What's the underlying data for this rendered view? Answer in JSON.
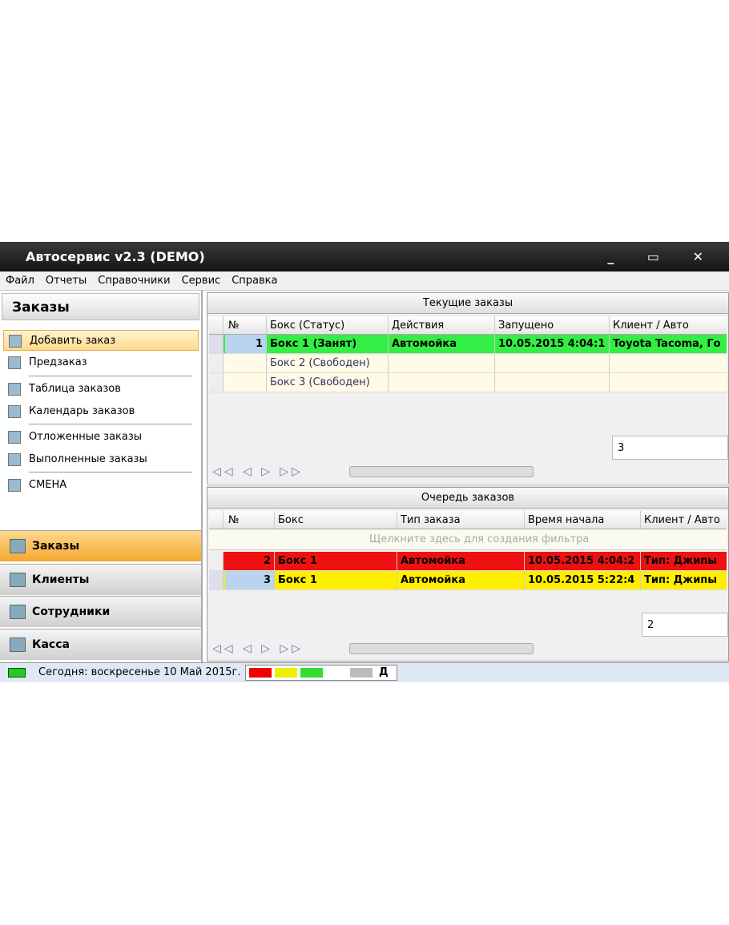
{
  "window": {
    "title": "Автосервис v2.3 (DEMO)"
  },
  "menu": [
    "Файл",
    "Отчеты",
    "Справочники",
    "Сервис",
    "Справка"
  ],
  "sidebar": {
    "title": "Заказы",
    "items": [
      "Добавить заказ",
      "Предзаказ",
      "Таблица заказов",
      "Календарь заказов",
      "Отложенные заказы",
      "Выполненные заказы",
      "СМЕНА"
    ],
    "nav": [
      "Заказы",
      "Клиенты",
      "Сотрудники",
      "Касса"
    ]
  },
  "current_orders": {
    "title": "Текущие заказы",
    "columns": [
      "№",
      "Бокс (Статус)",
      "Действия",
      "Запущено",
      "Клиент / Авто"
    ],
    "rows": [
      {
        "number": 1,
        "box": "Бокс 1 (Занят)",
        "action": "Автомойка",
        "time": "10.05.2015 4:04:1",
        "client": "Toyota Tacoma, Го"
      },
      {
        "box": "Бокс 2 (Свободен)"
      },
      {
        "box": "Бокс 3 (Свободен)"
      }
    ],
    "count": 3
  },
  "queue": {
    "title": "Очередь заказов",
    "columns": [
      "№",
      "Бокс",
      "Тип заказа",
      "Время начала",
      "Клиент / Авто"
    ],
    "filter_hint": "Щелкните здесь для создания фильтра",
    "rows": [
      {
        "number": 2,
        "box": "Бокс 1",
        "action": "Автомойка",
        "time": "10.05.2015 4:04:2",
        "client": "Тип: Джипы"
      },
      {
        "number": 3,
        "box": "Бокс 1",
        "action": "Автомойка",
        "time": "10.05.2015 5:22:4",
        "client": "Тип: Джипы"
      }
    ],
    "count": 2
  },
  "status": {
    "today": "Сегодня: воскресенье 10 Май 2015г.",
    "flag": "Д"
  }
}
